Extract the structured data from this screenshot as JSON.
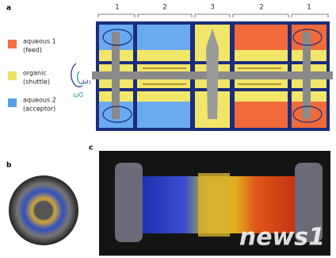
{
  "panels": {
    "a": "a",
    "b": "b",
    "c": "c"
  },
  "legend": [
    {
      "label": "aqueous 1",
      "note": "(feed)"
    },
    {
      "label": "organic",
      "note": "(shuttle)"
    },
    {
      "label": "aqueous 2",
      "note": "(acceptor)"
    }
  ],
  "rotation": {
    "inner": "ω₁",
    "outer": "ω0"
  },
  "sections": [
    "1",
    "2",
    "3",
    "2",
    "1"
  ],
  "watermark": "news1"
}
